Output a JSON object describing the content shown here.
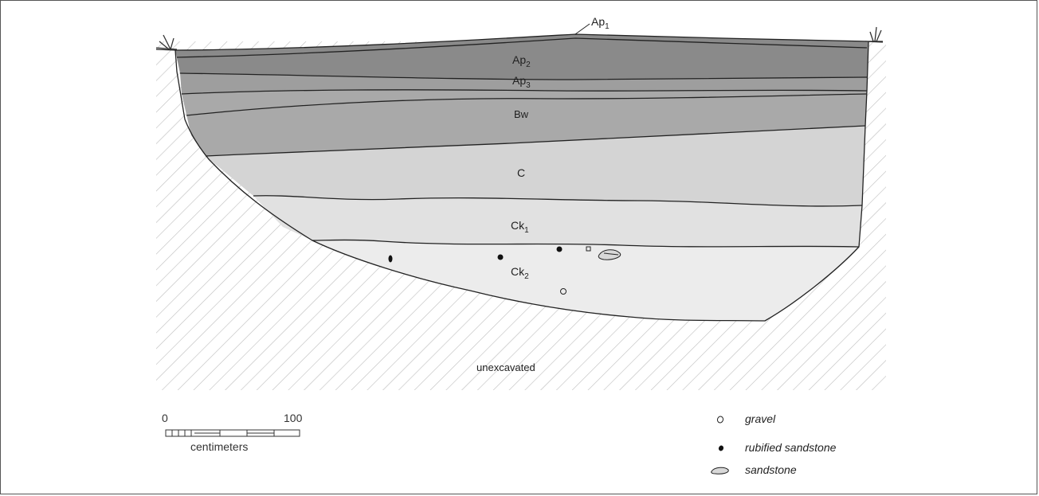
{
  "horizons": [
    {
      "id": "ap1",
      "base": "Ap",
      "sub": "1"
    },
    {
      "id": "ap2",
      "base": "Ap",
      "sub": "2"
    },
    {
      "id": "ap3",
      "base": "Ap",
      "sub": "3"
    },
    {
      "id": "bw",
      "base": "Bw",
      "sub": ""
    },
    {
      "id": "c",
      "base": "C",
      "sub": ""
    },
    {
      "id": "ck1",
      "base": "Ck",
      "sub": "1"
    },
    {
      "id": "ck2",
      "base": "Ck",
      "sub": "2"
    }
  ],
  "unexcavated_label": "unexcavated",
  "scale": {
    "start": "0",
    "end": "100",
    "unit": "centimeters"
  },
  "legend": [
    {
      "symbol": "gravel-icon",
      "label": "gravel"
    },
    {
      "symbol": "rubified-sandstone-icon",
      "label": "rubified sandstone"
    },
    {
      "symbol": "sandstone-icon",
      "label": "sandstone"
    }
  ],
  "colors": {
    "ap2": "#8a8a8a",
    "ap3": "#9e9e9e",
    "bw": "#a9a9a9",
    "c": "#d4d4d4",
    "ck1": "#e1e1e1",
    "ck2": "#ececec",
    "hatch": "#bdbdbd",
    "line": "#222222"
  }
}
